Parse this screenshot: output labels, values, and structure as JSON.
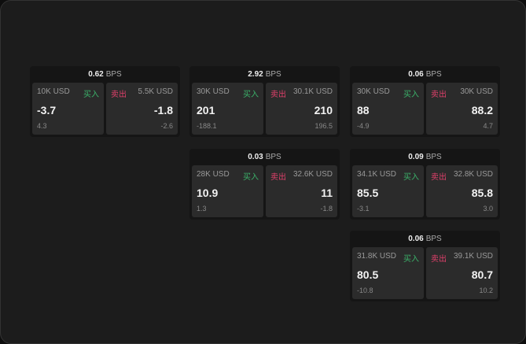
{
  "unit": "BPS",
  "buy_label": "买入",
  "sell_label": "卖出",
  "cards": [
    {
      "spread": "0.62",
      "bid": {
        "size": "10K USD",
        "price": "-3.7",
        "change": "4.3"
      },
      "ask": {
        "size": "5.5K USD",
        "price": "-1.8",
        "change": "-2.6"
      }
    },
    {
      "spread": "2.92",
      "bid": {
        "size": "30K USD",
        "price": "201",
        "change": "-188.1"
      },
      "ask": {
        "size": "30.1K USD",
        "price": "210",
        "change": "196.5"
      }
    },
    {
      "spread": "0.06",
      "bid": {
        "size": "30K USD",
        "price": "88",
        "change": "-4.9"
      },
      "ask": {
        "size": "30K USD",
        "price": "88.2",
        "change": "4.7"
      }
    },
    {
      "spread": "0.03",
      "bid": {
        "size": "28K USD",
        "price": "10.9",
        "change": "1.3"
      },
      "ask": {
        "size": "32.6K USD",
        "price": "11",
        "change": "-1.8"
      }
    },
    {
      "spread": "0.09",
      "bid": {
        "size": "34.1K USD",
        "price": "85.5",
        "change": "-3.1"
      },
      "ask": {
        "size": "32.8K USD",
        "price": "85.8",
        "change": "3.0"
      }
    },
    {
      "spread": "0.06",
      "bid": {
        "size": "31.8K USD",
        "price": "80.5",
        "change": "-10.8"
      },
      "ask": {
        "size": "39.1K USD",
        "price": "80.7",
        "change": "10.2"
      }
    }
  ]
}
